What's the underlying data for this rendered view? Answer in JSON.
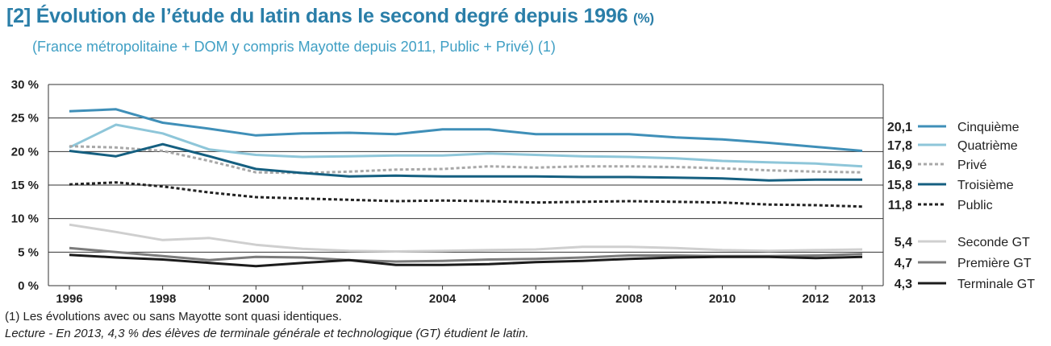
{
  "title": {
    "main": "[2] Évolution de l’étude du latin dans le second degré depuis 1996",
    "unit": "(%)"
  },
  "subtitle": "(France métropolitaine + DOM y compris Mayotte depuis 2011, Public + Privé) (1)",
  "footnote": "(1) Les évolutions avec ou sans Mayotte sont quasi identiques.",
  "reading_note": "Lecture - En 2013, 4,3 % des élèves de terminale générale et technologique (GT) étudient le latin.",
  "chart_data": {
    "type": "line",
    "x": [
      1996,
      1997,
      1998,
      1999,
      2000,
      2001,
      2002,
      2003,
      2004,
      2005,
      2006,
      2007,
      2008,
      2009,
      2010,
      2011,
      2012,
      2013
    ],
    "xtick_labels": [
      "1996",
      "1998",
      "2000",
      "2002",
      "2004",
      "2006",
      "2008",
      "2010",
      "2012",
      "2013"
    ],
    "xtick_values": [
      1996,
      1998,
      2000,
      2002,
      2004,
      2006,
      2008,
      2010,
      2012,
      2013
    ],
    "ylim": [
      0,
      30
    ],
    "ytick_values": [
      0,
      5,
      10,
      15,
      20,
      25,
      30
    ],
    "ytick_labels": [
      "0 %",
      "5 %",
      "10 %",
      "15 %",
      "20 %",
      "25 %",
      "30 %"
    ],
    "grid": true,
    "legend_position": "right",
    "series": [
      {
        "name": "Cinquième",
        "end_label": "20,1",
        "color": "#3f8fb8",
        "dash": "solid",
        "values": [
          26.0,
          26.3,
          24.3,
          23.4,
          22.4,
          22.7,
          22.8,
          22.6,
          23.3,
          23.3,
          22.6,
          22.6,
          22.6,
          22.1,
          21.8,
          21.3,
          20.7,
          20.1
        ]
      },
      {
        "name": "Quatrième",
        "end_label": "17,8",
        "color": "#8ec6d9",
        "dash": "solid",
        "values": [
          20.6,
          24.0,
          22.7,
          20.3,
          19.5,
          19.2,
          19.3,
          19.4,
          19.4,
          19.7,
          19.5,
          19.3,
          19.2,
          19.0,
          18.6,
          18.4,
          18.2,
          17.8
        ]
      },
      {
        "name": "Privé",
        "end_label": "16,9",
        "color": "#a8a8a8",
        "dash": "dot",
        "values": [
          20.8,
          20.6,
          20.1,
          18.6,
          16.9,
          16.8,
          17.0,
          17.3,
          17.4,
          17.8,
          17.6,
          17.8,
          17.8,
          17.7,
          17.5,
          17.2,
          17.0,
          16.9
        ]
      },
      {
        "name": "Troisième",
        "end_label": "15,8",
        "color": "#155f80",
        "dash": "solid",
        "values": [
          20.1,
          19.3,
          21.1,
          19.3,
          17.4,
          16.8,
          16.3,
          16.4,
          16.3,
          16.3,
          16.3,
          16.2,
          16.2,
          16.1,
          16.0,
          15.7,
          15.8,
          15.8
        ]
      },
      {
        "name": "Public",
        "end_label": "11,8",
        "color": "#222222",
        "dash": "dot",
        "values": [
          15.1,
          15.4,
          14.8,
          13.9,
          13.2,
          13.0,
          12.8,
          12.6,
          12.7,
          12.6,
          12.4,
          12.5,
          12.6,
          12.5,
          12.4,
          12.1,
          12.0,
          11.8
        ]
      },
      {
        "name": "Seconde GT",
        "end_label": "5,4",
        "color": "#cfcfcf",
        "dash": "solid",
        "values": [
          9.1,
          8.0,
          6.8,
          7.1,
          6.1,
          5.5,
          5.2,
          5.1,
          5.2,
          5.3,
          5.4,
          5.8,
          5.8,
          5.6,
          5.3,
          5.2,
          5.3,
          5.4
        ]
      },
      {
        "name": "Première GT",
        "end_label": "4,7",
        "color": "#7c7c7c",
        "dash": "solid",
        "values": [
          5.6,
          5.0,
          4.4,
          3.8,
          4.3,
          4.2,
          3.8,
          3.6,
          3.7,
          3.9,
          4.0,
          4.2,
          4.5,
          4.5,
          4.4,
          4.4,
          4.5,
          4.7
        ]
      },
      {
        "name": "Terminale GT",
        "end_label": "4,3",
        "color": "#1c1c1c",
        "dash": "solid",
        "values": [
          4.6,
          4.2,
          3.9,
          3.4,
          2.9,
          3.4,
          3.8,
          3.1,
          3.1,
          3.2,
          3.5,
          3.7,
          4.0,
          4.2,
          4.3,
          4.3,
          4.1,
          4.3
        ]
      }
    ]
  }
}
